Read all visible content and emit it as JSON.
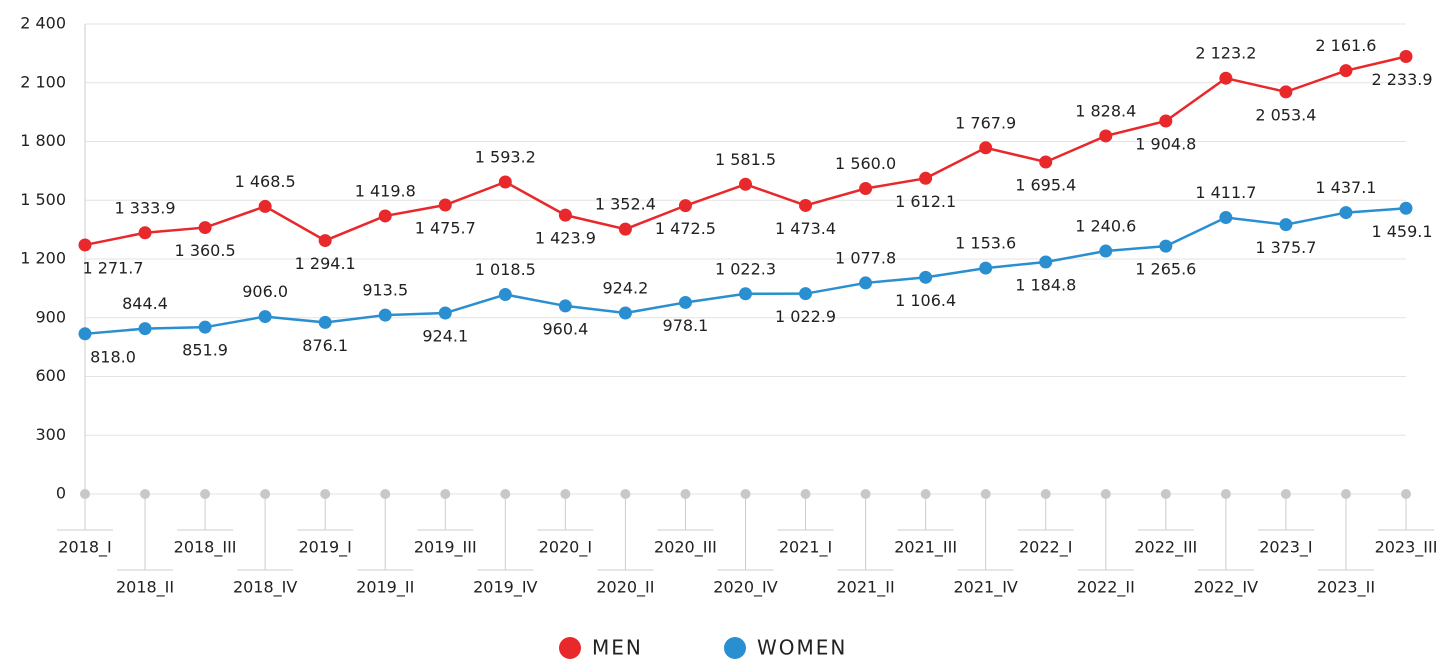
{
  "chart_data": {
    "type": "line",
    "categories": [
      "2018_I",
      "2018_II",
      "2018_III",
      "2018_IV",
      "2019_I",
      "2019_II",
      "2019_III",
      "2019_IV",
      "2020_I",
      "2020_II",
      "2020_III",
      "2020_IV",
      "2021_I",
      "2021_II",
      "2021_III",
      "2021_IV",
      "2022_I",
      "2022_II",
      "2022_III",
      "2022_IV",
      "2023_I",
      "2023_II",
      "2023_III"
    ],
    "series": [
      {
        "name": "MEN",
        "color": "#e8282b",
        "values": [
          1271.7,
          1333.9,
          1360.5,
          1468.5,
          1294.1,
          1419.8,
          1475.7,
          1593.2,
          1423.9,
          1352.4,
          1472.5,
          1581.5,
          1473.4,
          1560.0,
          1612.1,
          1767.9,
          1695.4,
          1828.4,
          1904.8,
          2123.2,
          2053.4,
          2161.6,
          2233.9
        ],
        "value_labels": [
          "1 271.7",
          "1 333.9",
          "1 360.5",
          "1 468.5",
          "1 294.1",
          "1 419.8",
          "1 475.7",
          "1 593.2",
          "1 423.9",
          "1 352.4",
          "1 472.5",
          "1 581.5",
          "1 473.4",
          "1 560.0",
          "1 612.1",
          "1 767.9",
          "1 695.4",
          "1 828.4",
          "1 904.8",
          "2 123.2",
          "2 053.4",
          "2 161.6",
          "2 233.9"
        ]
      },
      {
        "name": "WOMEN",
        "color": "#2a8fd0",
        "values": [
          818.0,
          844.4,
          851.9,
          906.0,
          876.1,
          913.5,
          924.1,
          1018.5,
          960.4,
          924.2,
          978.1,
          1022.3,
          1022.9,
          1077.8,
          1106.4,
          1153.6,
          1184.8,
          1240.6,
          1265.6,
          1411.7,
          1375.7,
          1437.1,
          1459.1
        ],
        "value_labels": [
          "818.0",
          "844.4",
          "851.9",
          "906.0",
          "876.1",
          "913.5",
          "924.1",
          "1 018.5",
          "960.4",
          "924.2",
          "978.1",
          "1 022.3",
          "1 022.9",
          "1 077.8",
          "1 106.4",
          "1 153.6",
          "1 184.8",
          "1 240.6",
          "1 265.6",
          "1 411.7",
          "1 375.7",
          "1 437.1",
          "1 459.1"
        ]
      }
    ],
    "ylim": [
      0,
      2400
    ],
    "yticks": [
      0,
      300,
      600,
      900,
      {
        "value": 1200,
        "label": "1 200"
      },
      {
        "value": 1500,
        "label": "1 500"
      },
      {
        "value": 1800,
        "label": "1 800"
      },
      {
        "value": 2100,
        "label": "2 100"
      },
      {
        "value": 2400,
        "label": "2 400"
      }
    ],
    "grid": true,
    "legend": "bottom"
  }
}
